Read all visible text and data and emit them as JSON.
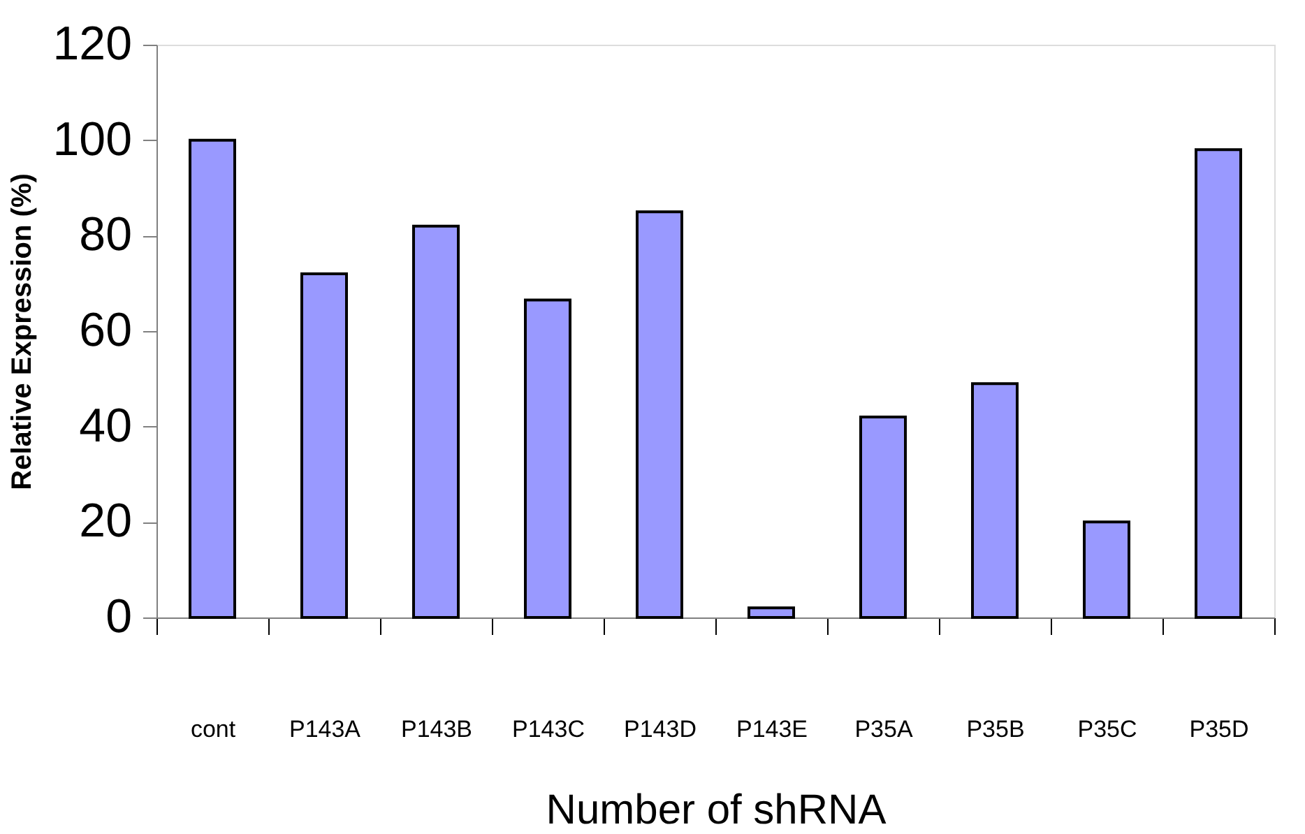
{
  "chart_data": {
    "type": "bar",
    "xlabel": "Number of shRNA",
    "ylabel": "Relative Expression (%)",
    "categories": [
      "cont",
      "P143A",
      "P143B",
      "P143C",
      "P143D",
      "P143E",
      "P35A",
      "P35B",
      "P35C",
      "P35D"
    ],
    "values": [
      100,
      72,
      82,
      66.5,
      85,
      2,
      42,
      49,
      20,
      98
    ],
    "color": "#9999ff",
    "ylim": [
      0,
      120
    ],
    "yticks": [
      0,
      20,
      40,
      60,
      80,
      100,
      120
    ],
    "grid": false
  }
}
